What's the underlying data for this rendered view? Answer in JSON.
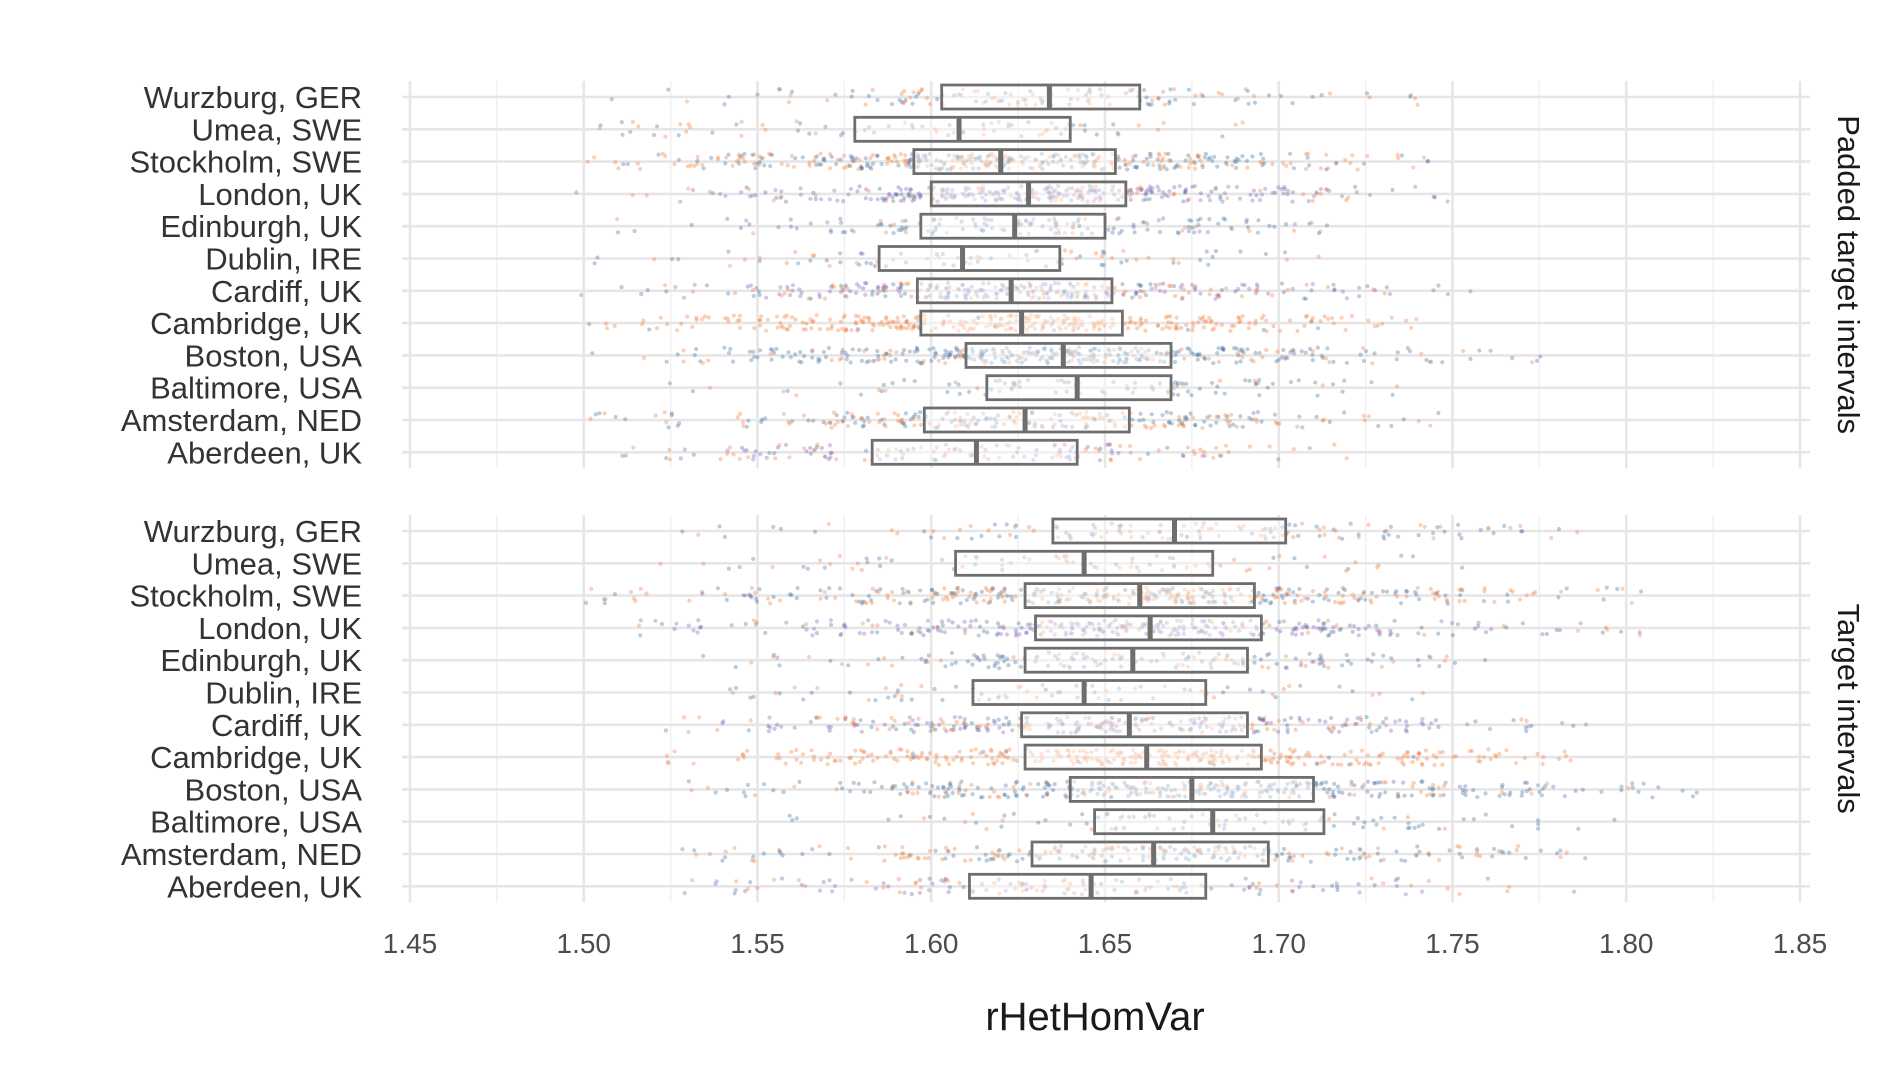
{
  "chart_data": {
    "type": "boxplot_with_jitter",
    "orientation": "horizontal",
    "xlabel": "rHetHomVar",
    "xlim": [
      1.45,
      1.85
    ],
    "x_ticks": [
      "1.45",
      "1.50",
      "1.55",
      "1.60",
      "1.65",
      "1.70",
      "1.75",
      "1.80",
      "1.85"
    ],
    "x_tick_values": [
      1.45,
      1.5,
      1.55,
      1.6,
      1.65,
      1.7,
      1.75,
      1.8,
      1.85
    ],
    "grid": true,
    "colors": {
      "orange": "#f26c21",
      "blue": "#2e5f96",
      "purple": "#7d4ab0",
      "box": "#6e6e6e"
    },
    "categories": [
      "Wurzburg, GER",
      "Umea, SWE",
      "Stockholm, SWE",
      "London, UK",
      "Edinburgh, UK",
      "Dublin, IRE",
      "Cardiff, UK",
      "Cambridge, UK",
      "Boston, USA",
      "Baltimore, USA",
      "Amsterdam, NED",
      "Aberdeen, UK"
    ],
    "panels": [
      {
        "facet_label": "Padded target intervals",
        "boxes": [
          {
            "category": "Wurzburg, GER",
            "q1": 1.603,
            "median": 1.634,
            "q3": 1.66,
            "range": [
              1.505,
              1.745
            ],
            "density": 1.0,
            "mix": {
              "orange": 0.5,
              "blue": 0.5,
              "purple": 0.0
            }
          },
          {
            "category": "Umea, SWE",
            "q1": 1.578,
            "median": 1.608,
            "q3": 1.64,
            "range": [
              1.46,
              1.695
            ],
            "density": 0.6,
            "mix": {
              "orange": 0.5,
              "blue": 0.5,
              "purple": 0.0
            }
          },
          {
            "category": "Stockholm, SWE",
            "q1": 1.595,
            "median": 1.62,
            "q3": 1.653,
            "range": [
              1.494,
              1.752
            ],
            "density": 2.8,
            "mix": {
              "orange": 0.5,
              "blue": 0.5,
              "purple": 0.0
            }
          },
          {
            "category": "London, UK",
            "q1": 1.6,
            "median": 1.628,
            "q3": 1.656,
            "range": [
              1.497,
              1.752
            ],
            "density": 2.3,
            "mix": {
              "orange": 0.15,
              "blue": 0.35,
              "purple": 0.5
            }
          },
          {
            "category": "Edinburgh, UK",
            "q1": 1.597,
            "median": 1.624,
            "q3": 1.65,
            "range": [
              1.505,
              1.728
            ],
            "density": 1.2,
            "mix": {
              "orange": 0.2,
              "blue": 0.7,
              "purple": 0.1
            }
          },
          {
            "category": "Dublin, IRE",
            "q1": 1.585,
            "median": 1.609,
            "q3": 1.637,
            "range": [
              1.503,
              1.712
            ],
            "density": 0.6,
            "mix": {
              "orange": 0.3,
              "blue": 0.7,
              "purple": 0.0
            }
          },
          {
            "category": "Cardiff, UK",
            "q1": 1.596,
            "median": 1.623,
            "q3": 1.652,
            "range": [
              1.498,
              1.757
            ],
            "density": 2.2,
            "mix": {
              "orange": 0.3,
              "blue": 0.35,
              "purple": 0.35
            }
          },
          {
            "category": "Cambridge, UK",
            "q1": 1.597,
            "median": 1.626,
            "q3": 1.655,
            "range": [
              1.498,
              1.74
            ],
            "density": 2.4,
            "mix": {
              "orange": 0.95,
              "blue": 0.05,
              "purple": 0.0
            }
          },
          {
            "category": "Boston, USA",
            "q1": 1.61,
            "median": 1.638,
            "q3": 1.669,
            "range": [
              1.5,
              1.776
            ],
            "density": 2.6,
            "mix": {
              "orange": 0.2,
              "blue": 0.8,
              "purple": 0.0
            }
          },
          {
            "category": "Baltimore, USA",
            "q1": 1.616,
            "median": 1.642,
            "q3": 1.669,
            "range": [
              1.522,
              1.746
            ],
            "density": 0.7,
            "mix": {
              "orange": 0.2,
              "blue": 0.8,
              "purple": 0.0
            }
          },
          {
            "category": "Amsterdam, NED",
            "q1": 1.598,
            "median": 1.627,
            "q3": 1.657,
            "range": [
              1.498,
              1.748
            ],
            "density": 1.8,
            "mix": {
              "orange": 0.5,
              "blue": 0.5,
              "purple": 0.0
            }
          },
          {
            "category": "Aberdeen, UK",
            "q1": 1.583,
            "median": 1.613,
            "q3": 1.642,
            "range": [
              1.505,
              1.735
            ],
            "density": 1.1,
            "mix": {
              "orange": 0.4,
              "blue": 0.2,
              "purple": 0.4
            }
          }
        ]
      },
      {
        "facet_label": "Target intervals",
        "boxes": [
          {
            "category": "Wurzburg, GER",
            "q1": 1.635,
            "median": 1.67,
            "q3": 1.702,
            "range": [
              1.522,
              1.795
            ],
            "density": 1.0,
            "mix": {
              "orange": 0.5,
              "blue": 0.5,
              "purple": 0.0
            }
          },
          {
            "category": "Umea, SWE",
            "q1": 1.607,
            "median": 1.644,
            "q3": 1.681,
            "range": [
              1.487,
              1.76
            ],
            "density": 0.6,
            "mix": {
              "orange": 0.5,
              "blue": 0.5,
              "purple": 0.0
            }
          },
          {
            "category": "Stockholm, SWE",
            "q1": 1.627,
            "median": 1.66,
            "q3": 1.693,
            "range": [
              1.5,
              1.82
            ],
            "density": 2.8,
            "mix": {
              "orange": 0.5,
              "blue": 0.5,
              "purple": 0.0
            }
          },
          {
            "category": "London, UK",
            "q1": 1.63,
            "median": 1.663,
            "q3": 1.695,
            "range": [
              1.513,
              1.805
            ],
            "density": 2.3,
            "mix": {
              "orange": 0.15,
              "blue": 0.35,
              "purple": 0.5
            }
          },
          {
            "category": "Edinburgh, UK",
            "q1": 1.627,
            "median": 1.658,
            "q3": 1.691,
            "range": [
              1.533,
              1.76
            ],
            "density": 1.2,
            "mix": {
              "orange": 0.2,
              "blue": 0.7,
              "purple": 0.1
            }
          },
          {
            "category": "Dublin, IRE",
            "q1": 1.612,
            "median": 1.644,
            "q3": 1.679,
            "range": [
              1.525,
              1.75
            ],
            "density": 0.6,
            "mix": {
              "orange": 0.3,
              "blue": 0.7,
              "purple": 0.0
            }
          },
          {
            "category": "Cardiff, UK",
            "q1": 1.626,
            "median": 1.657,
            "q3": 1.691,
            "range": [
              1.52,
              1.805
            ],
            "density": 2.2,
            "mix": {
              "orange": 0.3,
              "blue": 0.35,
              "purple": 0.35
            }
          },
          {
            "category": "Cambridge, UK",
            "q1": 1.627,
            "median": 1.662,
            "q3": 1.695,
            "range": [
              1.523,
              1.79
            ],
            "density": 2.4,
            "mix": {
              "orange": 0.95,
              "blue": 0.05,
              "purple": 0.0
            }
          },
          {
            "category": "Boston, USA",
            "q1": 1.64,
            "median": 1.675,
            "q3": 1.71,
            "range": [
              1.53,
              1.826
            ],
            "density": 2.6,
            "mix": {
              "orange": 0.2,
              "blue": 0.8,
              "purple": 0.0
            }
          },
          {
            "category": "Baltimore, USA",
            "q1": 1.647,
            "median": 1.681,
            "q3": 1.713,
            "range": [
              1.535,
              1.8
            ],
            "density": 0.7,
            "mix": {
              "orange": 0.2,
              "blue": 0.8,
              "purple": 0.0
            }
          },
          {
            "category": "Amsterdam, NED",
            "q1": 1.629,
            "median": 1.664,
            "q3": 1.697,
            "range": [
              1.525,
              1.79
            ],
            "density": 1.8,
            "mix": {
              "orange": 0.5,
              "blue": 0.5,
              "purple": 0.0
            }
          },
          {
            "category": "Aberdeen, UK",
            "q1": 1.611,
            "median": 1.646,
            "q3": 1.679,
            "range": [
              1.525,
              1.795
            ],
            "density": 1.1,
            "mix": {
              "orange": 0.4,
              "blue": 0.2,
              "purple": 0.4
            }
          }
        ]
      }
    ]
  }
}
